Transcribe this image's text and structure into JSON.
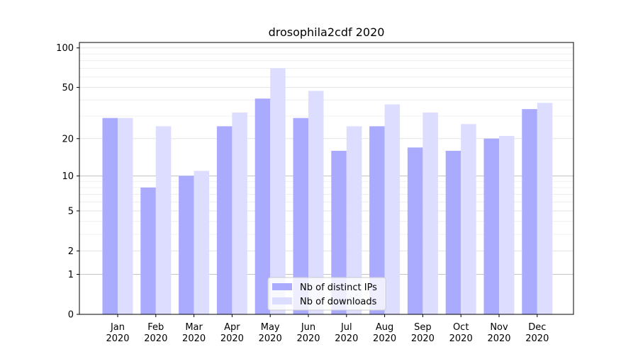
{
  "chart_data": {
    "type": "bar",
    "title": "drosophila2cdf 2020",
    "xlabel": "",
    "ylabel": "",
    "yscale": "symlog",
    "ylim": [
      0,
      110
    ],
    "yticks": [
      0,
      1,
      2,
      5,
      10,
      20,
      50,
      100
    ],
    "categories": [
      [
        "Jan",
        "2020"
      ],
      [
        "Feb",
        "2020"
      ],
      [
        "Mar",
        "2020"
      ],
      [
        "Apr",
        "2020"
      ],
      [
        "May",
        "2020"
      ],
      [
        "Jun",
        "2020"
      ],
      [
        "Jul",
        "2020"
      ],
      [
        "Aug",
        "2020"
      ],
      [
        "Sep",
        "2020"
      ],
      [
        "Oct",
        "2020"
      ],
      [
        "Nov",
        "2020"
      ],
      [
        "Dec",
        "2020"
      ]
    ],
    "series": [
      {
        "name": "Nb of distinct IPs",
        "color": "#aaaaff",
        "values": [
          29,
          8,
          10,
          25,
          41,
          29,
          16,
          25,
          17,
          16,
          20,
          34
        ]
      },
      {
        "name": "Nb of downloads",
        "color": "#ddddff",
        "values": [
          29,
          25,
          11,
          32,
          70,
          47,
          25,
          37,
          32,
          26,
          21,
          38
        ]
      }
    ],
    "grid": true,
    "legend_position": "bottom-center"
  }
}
